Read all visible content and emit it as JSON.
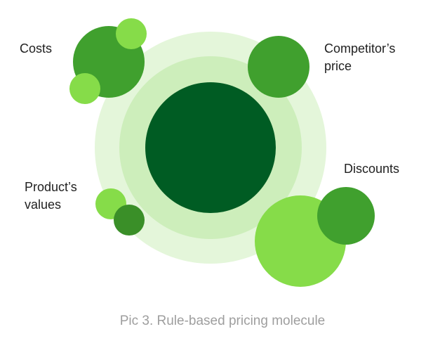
{
  "labels": {
    "costs": [
      "Costs"
    ],
    "competitor": [
      "Competitor’s",
      "price"
    ],
    "discounts": [
      "Discounts"
    ],
    "product": [
      "Product’s",
      "values"
    ]
  },
  "caption": "Pic 3. Rule-based pricing molecule"
}
